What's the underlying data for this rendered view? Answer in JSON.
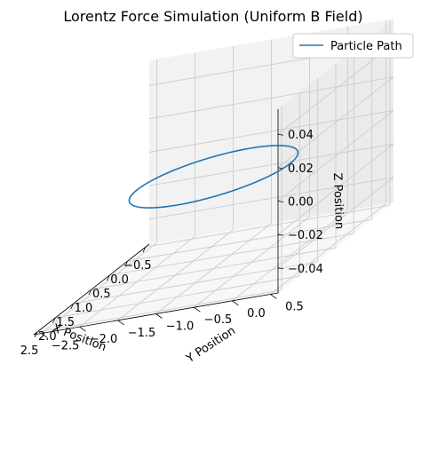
{
  "chart_data": {
    "type": "line",
    "projection": "3d",
    "title": "Lorentz Force Simulation (Uniform B Field)",
    "xlabel": "X Position",
    "ylabel": "Y Position",
    "zlabel": "Z Position",
    "xlim": [
      -0.6,
      2.6
    ],
    "ylim": [
      -2.6,
      0.6
    ],
    "zlim": [
      -0.055,
      0.055
    ],
    "xticks": [
      "−0.5",
      "0.0",
      "0.5",
      "1.0",
      "1.5",
      "2.0",
      "2.5"
    ],
    "yticks": [
      "−2.5",
      "−2.0",
      "−1.5",
      "−1.0",
      "−0.5",
      "0.0",
      "0.5"
    ],
    "zticks": [
      "−0.04",
      "−0.02",
      "0.00",
      "0.02",
      "0.04"
    ],
    "xtick_values": [
      -0.5,
      0.0,
      0.5,
      1.0,
      1.5,
      2.0,
      2.5
    ],
    "ytick_values": [
      -2.5,
      -2.0,
      -1.5,
      -1.0,
      -0.5,
      0.0,
      0.5
    ],
    "ztick_values": [
      -0.04,
      -0.02,
      0.0,
      0.02,
      0.04
    ],
    "grid": true,
    "legend_position": "top-right",
    "series": [
      {
        "name": "Particle Path",
        "color": "#1f77b4",
        "shape": "circle",
        "center": {
          "x": 1.0,
          "y": -1.0,
          "z": 0.0
        },
        "radius": 1.0
      }
    ]
  }
}
